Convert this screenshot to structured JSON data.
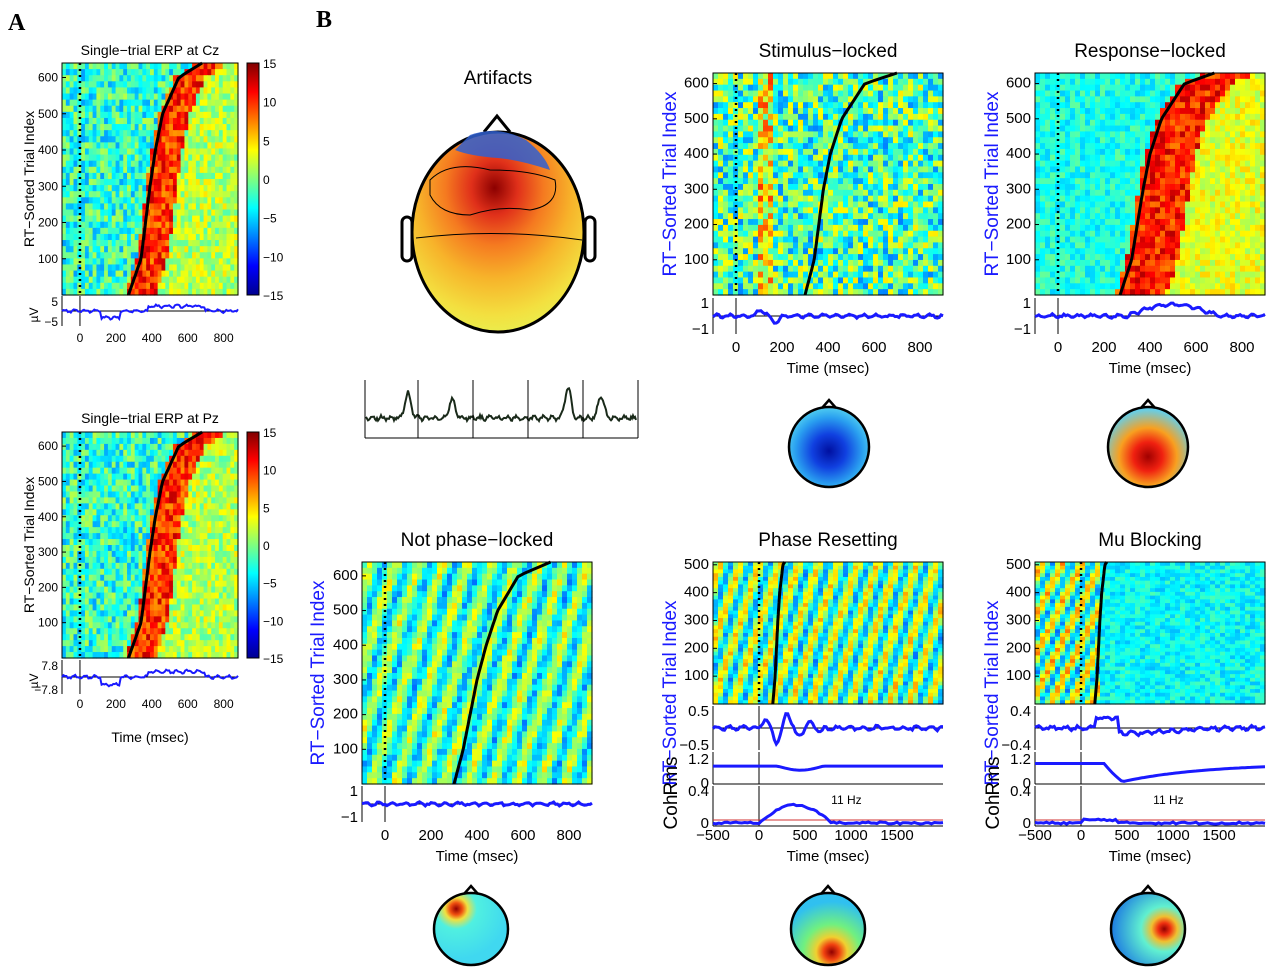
{
  "figure": {
    "panel_a_label": "A",
    "panel_b_label": "B"
  },
  "chart_data": [
    {
      "id": "cz",
      "type": "heatmap",
      "title": "Single−trial ERP at Cz",
      "ylabel": "RT−Sorted Trial Index",
      "xlabel": "",
      "yticks": [
        "100",
        "200",
        "300",
        "400",
        "500",
        "600"
      ],
      "xticks": [
        "0",
        "200",
        "400",
        "600",
        "800"
      ],
      "ylim": [
        0,
        640
      ],
      "xlim": [
        -100,
        880
      ],
      "colorbar_ticks": [
        "15",
        "10",
        "5",
        "0",
        "−5",
        "−10",
        "−15"
      ],
      "colorbar_range": [
        -15,
        15
      ],
      "erp_ylabel": "µV",
      "erp_yticks": [
        "5",
        "−5"
      ],
      "rt_curve": {
        "trial": [
          0,
          100,
          200,
          300,
          400,
          500,
          600,
          640
        ],
        "rt_ms": [
          270,
          340,
          365,
          390,
          420,
          460,
          550,
          680
        ]
      }
    },
    {
      "id": "pz",
      "type": "heatmap",
      "title": "Single−trial ERP at Pz",
      "ylabel": "RT−Sorted Trial Index",
      "xlabel": "Time (msec)",
      "yticks": [
        "100",
        "200",
        "300",
        "400",
        "500",
        "600"
      ],
      "xticks": [
        "0",
        "200",
        "400",
        "600",
        "800"
      ],
      "ylim": [
        0,
        640
      ],
      "xlim": [
        -100,
        880
      ],
      "colorbar_ticks": [
        "15",
        "10",
        "5",
        "0",
        "−5",
        "−10",
        "−15"
      ],
      "colorbar_range": [
        -15,
        15
      ],
      "erp_ylabel": "µV",
      "erp_yticks": [
        "7.8",
        "−7.8"
      ],
      "rt_curve": {
        "trial": [
          0,
          100,
          200,
          300,
          400,
          500,
          600,
          640
        ],
        "rt_ms": [
          270,
          340,
          365,
          390,
          420,
          460,
          550,
          680
        ]
      }
    },
    {
      "id": "artifacts",
      "type": "other",
      "title": "Artifacts"
    },
    {
      "id": "stim",
      "type": "heatmap",
      "title": "Stimulus−locked",
      "ylabel": "RT−Sorted Trial Index",
      "xlabel": "Time (msec)",
      "yticks": [
        "100",
        "200",
        "300",
        "400",
        "500",
        "600"
      ],
      "xticks": [
        "0",
        "200",
        "400",
        "600",
        "800"
      ],
      "xlim": [
        -100,
        900
      ],
      "ylim": [
        0,
        630
      ],
      "erp_yticks": [
        "1",
        "−1"
      ],
      "rt_curve": {
        "trial": [
          0,
          100,
          200,
          300,
          400,
          500,
          600,
          630
        ],
        "rt_ms": [
          300,
          340,
          360,
          380,
          410,
          460,
          560,
          700
        ]
      }
    },
    {
      "id": "resp",
      "type": "heatmap",
      "title": "Response−locked",
      "ylabel": "RT−Sorted Trial Index",
      "xlabel": "Time (msec)",
      "yticks": [
        "100",
        "200",
        "300",
        "400",
        "500",
        "600"
      ],
      "xticks": [
        "0",
        "200",
        "400",
        "600",
        "800"
      ],
      "xlim": [
        -100,
        900
      ],
      "ylim": [
        0,
        630
      ],
      "erp_yticks": [
        "1",
        "−1"
      ],
      "rt_curve": {
        "trial": [
          0,
          100,
          200,
          300,
          400,
          500,
          600,
          630
        ],
        "rt_ms": [
          270,
          320,
          345,
          370,
          400,
          450,
          550,
          680
        ]
      }
    },
    {
      "id": "notpl",
      "type": "heatmap",
      "title": "Not phase−locked",
      "ylabel": "RT−Sorted Trial Index",
      "xlabel": "Time (msec)",
      "yticks": [
        "100",
        "200",
        "300",
        "400",
        "500",
        "600"
      ],
      "xticks": [
        "0",
        "200",
        "400",
        "600",
        "800"
      ],
      "xlim": [
        -100,
        900
      ],
      "ylim": [
        0,
        640
      ],
      "erp_yticks": [
        "1",
        "−1"
      ],
      "rt_curve": {
        "trial": [
          0,
          100,
          200,
          300,
          400,
          500,
          600,
          640
        ],
        "rt_ms": [
          300,
          340,
          370,
          400,
          440,
          490,
          580,
          720
        ]
      }
    },
    {
      "id": "phase",
      "type": "heatmap",
      "title": "Phase Resetting",
      "ylabel": "RT−Sorted Trial Index",
      "xlabel": "Time (msec)",
      "yticks": [
        "100",
        "200",
        "300",
        "400",
        "500"
      ],
      "xticks": [
        "−500",
        "0",
        "500",
        "1000",
        "1500"
      ],
      "xlim": [
        -500,
        2000
      ],
      "ylim": [
        0,
        510
      ],
      "erp_yticks": [
        "0.5",
        "−0.5"
      ],
      "rms_yticks": [
        "1.2",
        "0"
      ],
      "coh_yticks": [
        "0.4",
        "0"
      ],
      "rms_label": "Rms",
      "coh_label": "Coh",
      "freq_label": "11 Hz",
      "rt_curve": {
        "trial": [
          0,
          100,
          200,
          300,
          400,
          500,
          510
        ],
        "rt_ms": [
          150,
          175,
          190,
          205,
          225,
          260,
          280
        ]
      }
    },
    {
      "id": "mu",
      "type": "heatmap",
      "title": "Mu Blocking",
      "ylabel": "RT−Sorted Trial Index",
      "xlabel": "Time (msec)",
      "yticks": [
        "100",
        "200",
        "300",
        "400",
        "500"
      ],
      "xticks": [
        "−500",
        "0",
        "500",
        "1000",
        "1500"
      ],
      "xlim": [
        -500,
        2000
      ],
      "ylim": [
        0,
        510
      ],
      "erp_yticks": [
        "0.4",
        "−0.4"
      ],
      "rms_yticks": [
        "1.2",
        "0"
      ],
      "coh_yticks": [
        "0.4",
        "0"
      ],
      "rms_label": "Rms",
      "coh_label": "Coh",
      "freq_label": "11 Hz",
      "rt_curve": {
        "trial": [
          0,
          100,
          200,
          300,
          400,
          500,
          510
        ],
        "rt_ms": [
          150,
          175,
          190,
          205,
          225,
          260,
          280
        ]
      }
    }
  ]
}
